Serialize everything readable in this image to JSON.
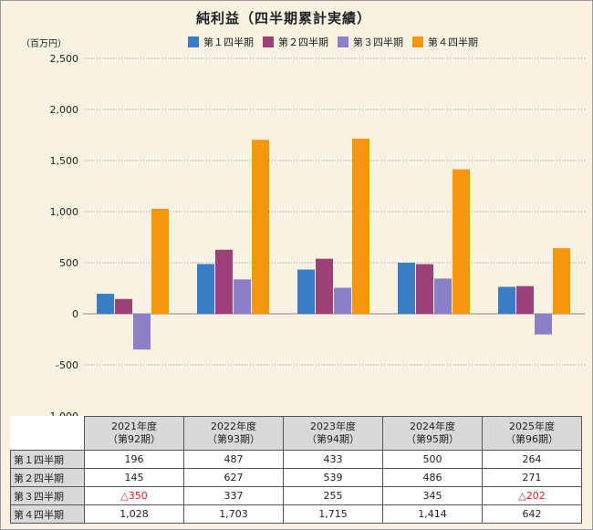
{
  "chart_data": {
    "type": "bar",
    "title": "純利益（四半期累計実績）",
    "unit_label": "（百万円）",
    "y_ticks": [
      "2,500",
      "2,000",
      "1,500",
      "1,000",
      "500",
      "0",
      "-500",
      "-1,000"
    ],
    "ylim": [
      -1000,
      2500
    ],
    "grid": true,
    "legend_position": "top",
    "categories": [
      "2021年度（第92期）",
      "2022年度（第93期）",
      "2023年度（第94期）",
      "2024年度（第95期）",
      "2025年度（第96期）"
    ],
    "category_lines": [
      [
        "2021年度",
        "（第92期）"
      ],
      [
        "2022年度",
        "（第93期）"
      ],
      [
        "2023年度",
        "（第94期）"
      ],
      [
        "2024年度",
        "（第95期）"
      ],
      [
        "2025年度",
        "（第96期）"
      ]
    ],
    "series": [
      {
        "name": "第１四半期",
        "color": "#3b7dc4",
        "values": [
          196,
          487,
          433,
          500,
          264
        ],
        "labels": [
          "196",
          "487",
          "433",
          "500",
          "264"
        ]
      },
      {
        "name": "第２四半期",
        "color": "#9c4177",
        "values": [
          145,
          627,
          539,
          486,
          271
        ],
        "labels": [
          "145",
          "627",
          "539",
          "486",
          "271"
        ]
      },
      {
        "name": "第３四半期",
        "color": "#8b80c6",
        "values": [
          -350,
          337,
          255,
          345,
          -202
        ],
        "labels": [
          "△350",
          "337",
          "255",
          "345",
          "△202"
        ]
      },
      {
        "name": "第４四半期",
        "color": "#f5960f",
        "values": [
          1028,
          1703,
          1715,
          1414,
          642
        ],
        "labels": [
          "1,028",
          "1,703",
          "1,715",
          "1,414",
          "642"
        ]
      }
    ]
  }
}
